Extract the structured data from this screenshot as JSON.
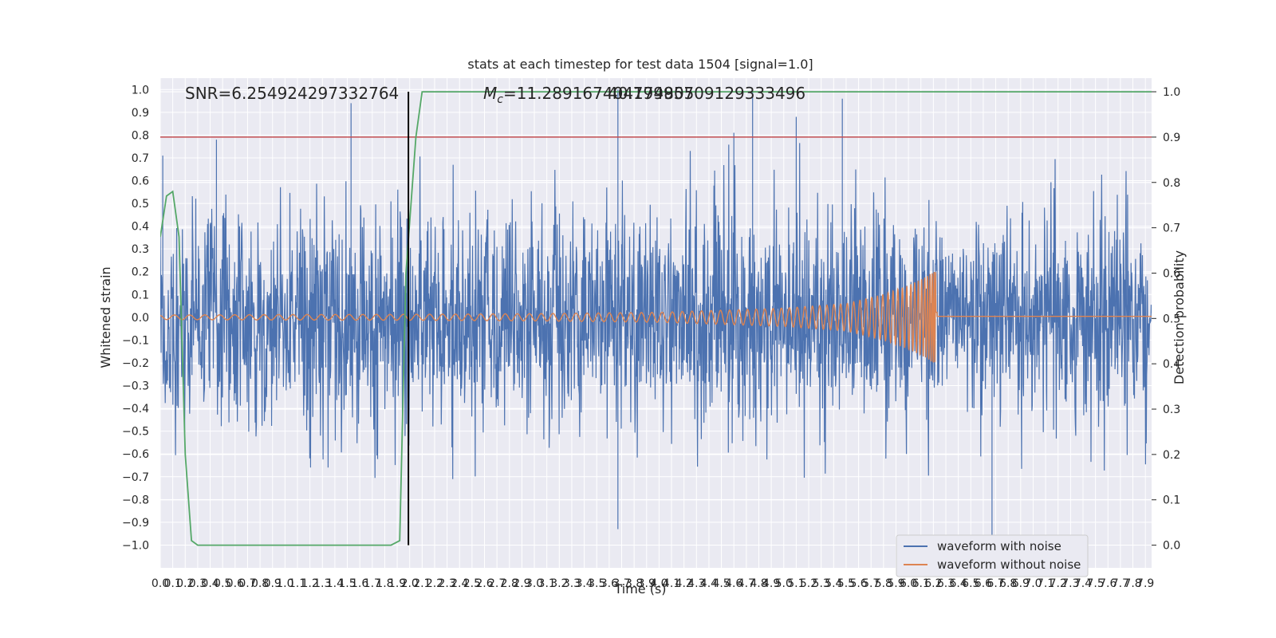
{
  "chart_data": {
    "type": "line",
    "title": "stats at each timestep for test data 1504 [signal=1.0]",
    "xlabel": "Time (s)",
    "ylabel": "Whitened strain",
    "y2label": "Detection probability",
    "xlim": [
      0.0,
      7.95
    ],
    "ylim": [
      -1.1,
      1.05
    ],
    "y2lim": [
      -0.05,
      1.03
    ],
    "x_tick_step": 0.1,
    "y_ticks": [
      -1.0,
      -0.9,
      -0.8,
      -0.7,
      -0.6,
      -0.5,
      -0.4,
      -0.3,
      -0.2,
      -0.1,
      0.0,
      0.1,
      0.2,
      0.3,
      0.4,
      0.5,
      0.6,
      0.7,
      0.8,
      0.9,
      1.0
    ],
    "y2_ticks": [
      0.0,
      0.1,
      0.2,
      0.3,
      0.4,
      0.5,
      0.6,
      0.7,
      0.8,
      0.9,
      1.0
    ],
    "grid": true,
    "legend_position": "lower-right",
    "annotations": {
      "snr": "SNR=6.254924297332764",
      "mc_symbol": "M",
      "mc_sub": "c",
      "mc_value": "=11.289167404174805",
      "mc_overlap": "40.79995709129333496"
    },
    "series": [
      {
        "name": "waveform with noise",
        "color": "#4c72b0",
        "description_values": {
          "typical_envelope": 0.4,
          "peak_examples": [
            [
              0.02,
              0.71
            ],
            [
              0.45,
              0.78
            ],
            [
              1.53,
              0.94
            ],
            [
              3.67,
              1.0
            ],
            [
              4.6,
              0.81
            ],
            [
              5.47,
              0.96
            ],
            [
              5.1,
              0.88
            ],
            [
              6.67,
              -0.98
            ],
            [
              4.75,
              1.0
            ],
            [
              3.67,
              -0.93
            ]
          ]
        }
      },
      {
        "name": "waveform without noise",
        "color": "#dd8452",
        "envelope_points": [
          [
            0.0,
            0.01
          ],
          [
            1.0,
            0.012
          ],
          [
            2.0,
            0.013
          ],
          [
            3.0,
            0.016
          ],
          [
            4.0,
            0.022
          ],
          [
            5.0,
            0.04
          ],
          [
            5.5,
            0.06
          ],
          [
            5.8,
            0.1
          ],
          [
            6.0,
            0.14
          ],
          [
            6.15,
            0.18
          ],
          [
            6.22,
            0.21
          ]
        ],
        "merger_time": 6.23
      },
      {
        "name": "detection probability",
        "color": "#55a868",
        "axis": "right",
        "points": [
          [
            0.0,
            0.68
          ],
          [
            0.05,
            0.77
          ],
          [
            0.1,
            0.78
          ],
          [
            0.15,
            0.68
          ],
          [
            0.2,
            0.2
          ],
          [
            0.25,
            0.01
          ],
          [
            0.3,
            0.0
          ],
          [
            1.85,
            0.0
          ],
          [
            1.92,
            0.01
          ],
          [
            1.97,
            0.6
          ],
          [
            2.05,
            0.9
          ],
          [
            2.1,
            1.0
          ],
          [
            7.95,
            1.0
          ]
        ]
      }
    ],
    "threshold": {
      "value": 0.9,
      "color": "#c44e52",
      "axis": "right"
    },
    "marker_line": {
      "x": 1.99,
      "color": "#000000"
    }
  }
}
